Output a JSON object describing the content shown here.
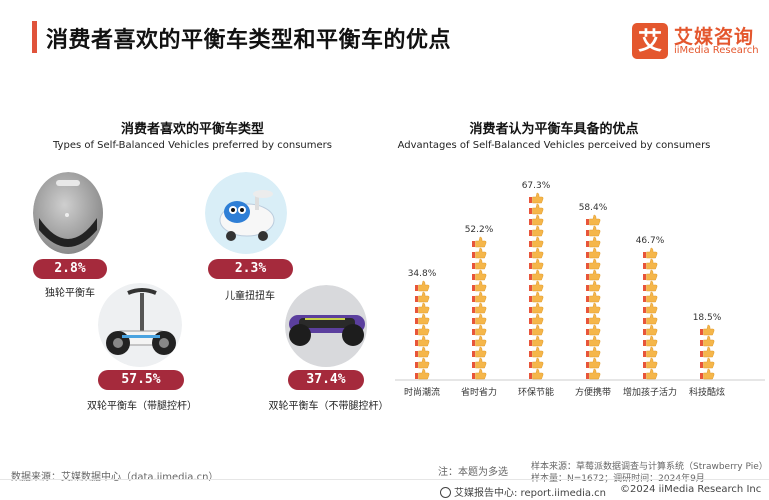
{
  "header": {
    "title": "消费者喜欢的平衡车类型和平衡车的优点",
    "logo_mark": "艾",
    "logo_cn": "艾媒咨询",
    "logo_en": "iiMedia Research"
  },
  "left": {
    "title_cn": "消费者喜欢的平衡车类型",
    "title_en": "Types of Self-Balanced Vehicles preferred by consumers",
    "types": [
      {
        "label": "独轮平衡车",
        "pct": "2.8%",
        "value": 2.8,
        "icon": "unicycle-icon"
      },
      {
        "label": "儿童扭扭车",
        "pct": "2.3%",
        "value": 2.3,
        "icon": "kids-swing-car-icon"
      },
      {
        "label": "双轮平衡车（带腿控杆）",
        "pct": "57.5%",
        "value": 57.5,
        "icon": "two-wheel-with-leg-bar-icon"
      },
      {
        "label": "双轮平衡车（不带腿控杆）",
        "pct": "37.4%",
        "value": 37.4,
        "icon": "hoverboard-icon"
      }
    ],
    "pill_color": "#a52a3c"
  },
  "right": {
    "title_cn": "消费者认为平衡车具备的优点",
    "title_en": "Advantages of Self-Balanced Vehicles perceived by consumers"
  },
  "chart_data": {
    "type": "bar",
    "categories": [
      "时尚潮流",
      "省时省力",
      "环保节能",
      "方便携带",
      "增加孩子活力",
      "科技酷炫"
    ],
    "values": [
      34.8,
      52.2,
      67.3,
      58.4,
      46.7,
      18.5
    ],
    "data_labels": [
      "34.8%",
      "52.2%",
      "67.3%",
      "58.4%",
      "46.7%",
      "18.5%"
    ],
    "ylim": [
      0,
      70
    ],
    "grid": false,
    "mark": "thumbs-up-icon stack",
    "colors": {
      "thumb": "#f5b64a",
      "cuff": "#e8553a"
    }
  },
  "footer": {
    "source": "数据来源：艾媒数据中心（data.iimedia.cn）",
    "note": "注：本题为多选",
    "sample_source": "样本来源：草莓派数据调查与计算系统（Strawberry Pie）",
    "sample_info": "样本量：N=1672；调研时间：2024年9月",
    "report_center": "艾媒报告中心: report.iimedia.cn",
    "copyright": "©2024  iiMedia Research  Inc"
  }
}
